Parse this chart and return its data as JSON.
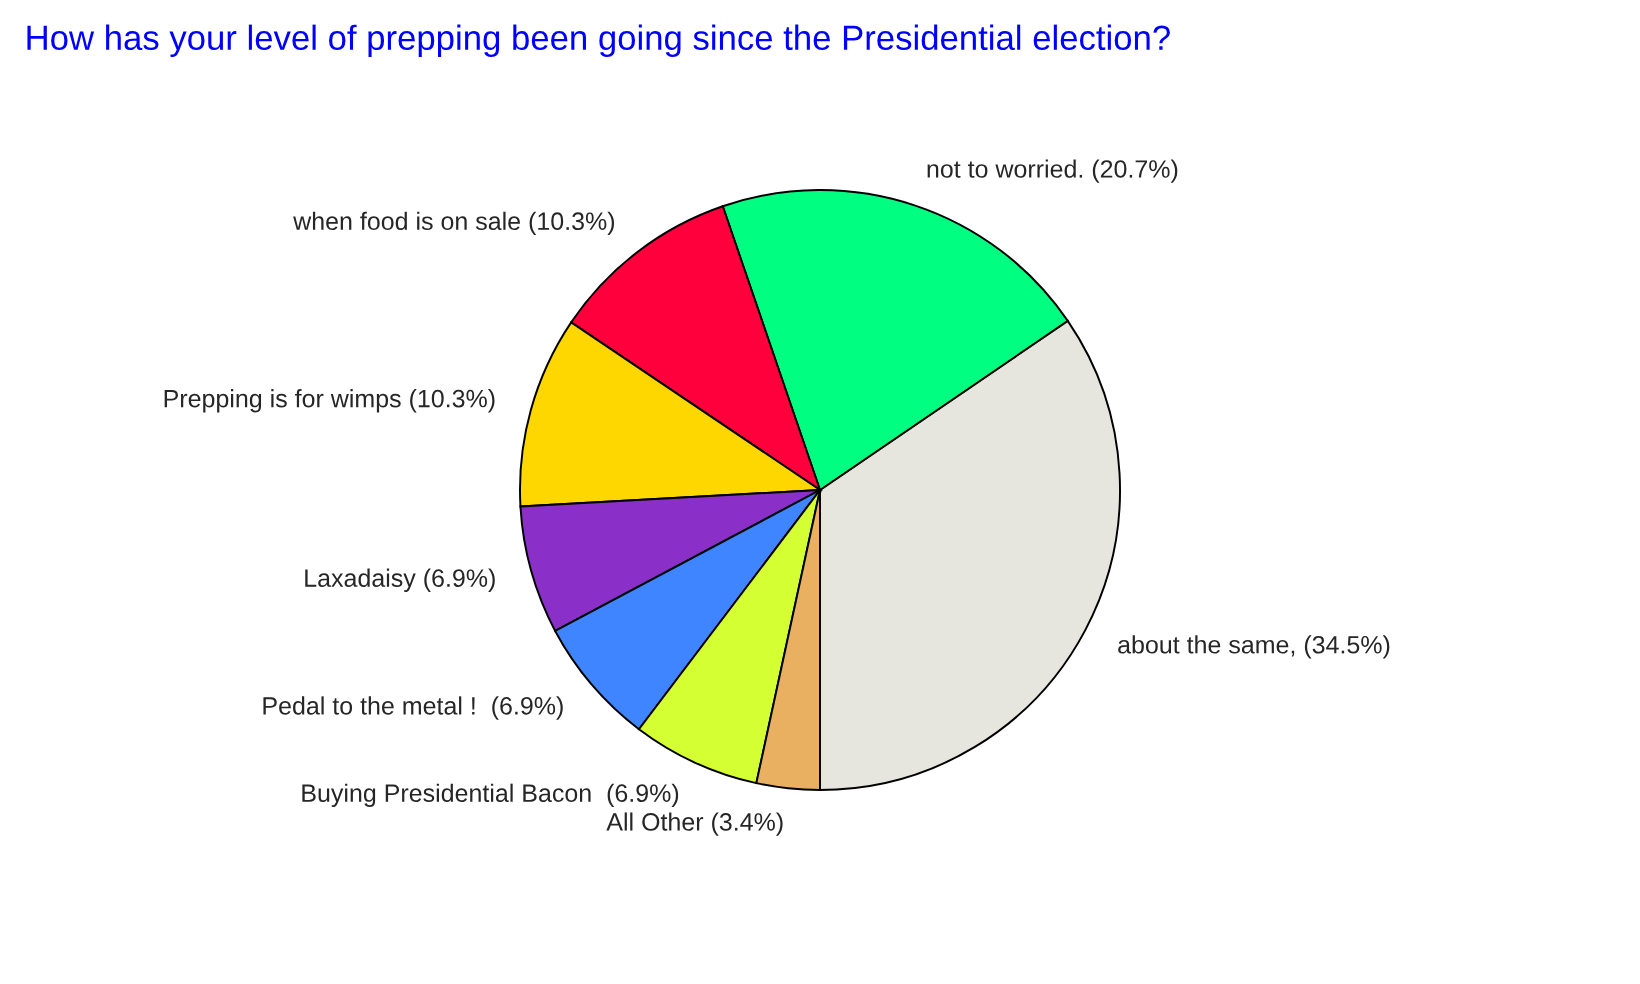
{
  "chart_data": {
    "type": "pie",
    "title": "How has your level of prepping been going since the Presidential election?",
    "categories": [
      "about the same, (34.5%)",
      "not to worried. (20.7%)",
      "when food is on sale (10.3%)",
      "Prepping is for wimps (10.3%)",
      "Laxadaisy (6.9%)",
      "Pedal to the metal !  (6.9%)",
      "Buying Presidential Bacon  (6.9%)",
      "All Other (3.4%)"
    ],
    "values": [
      34.5,
      20.7,
      10.3,
      10.3,
      6.9,
      6.9,
      6.9,
      3.4
    ],
    "colors": [
      "#e6e6de",
      "#00ff80",
      "#ff003c",
      "#ffd700",
      "#8b2fc9",
      "#3f85ff",
      "#d4ff33",
      "#e8b060"
    ]
  }
}
